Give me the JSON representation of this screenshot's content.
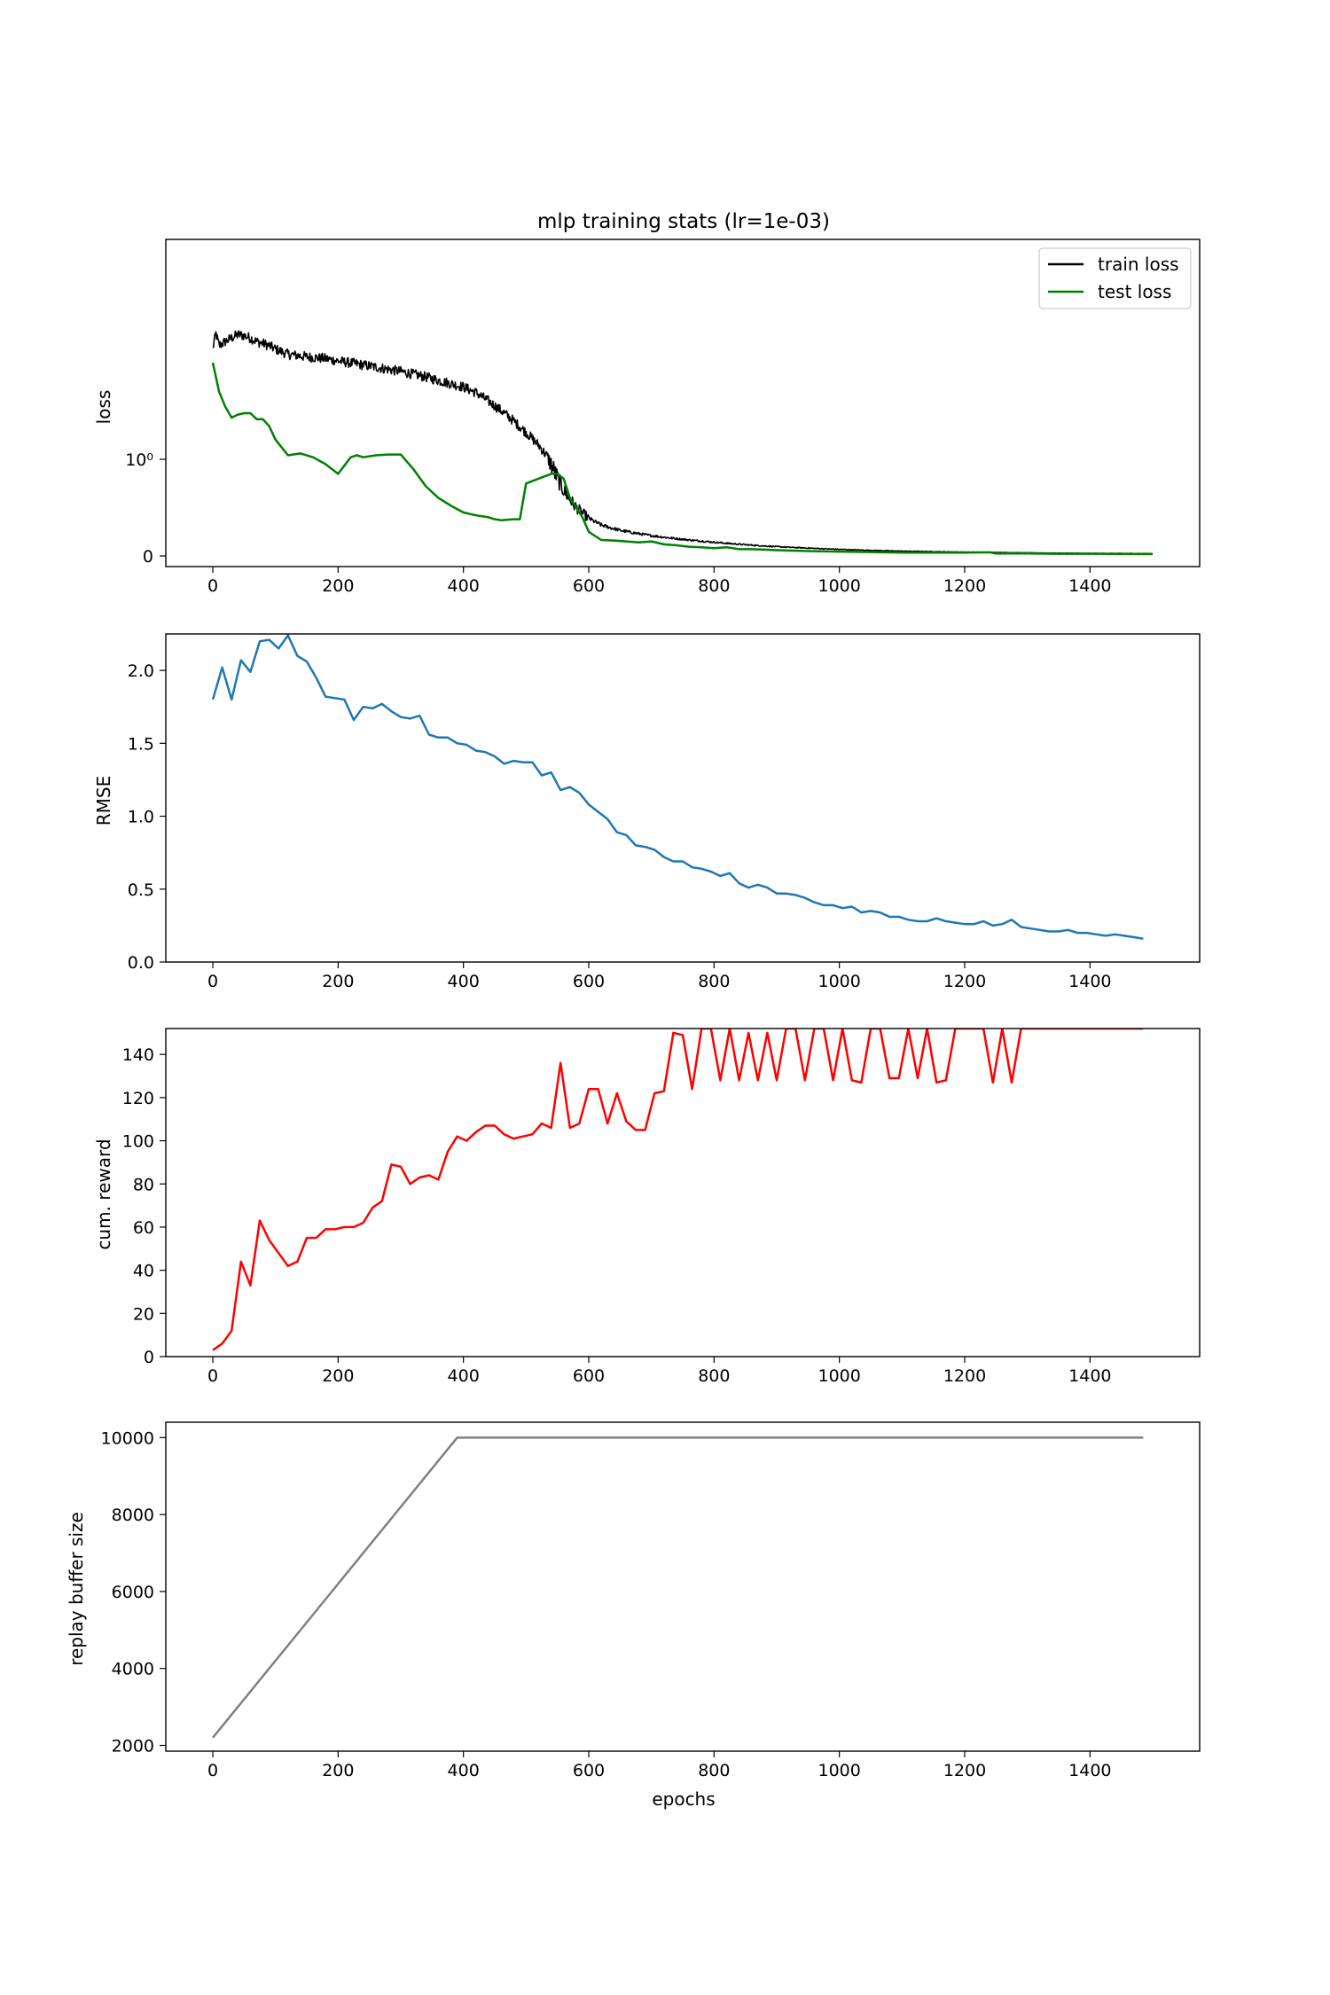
{
  "chart_data": [
    {
      "type": "line",
      "title": "mlp training stats (lr=1e-03)",
      "xlabel": "",
      "ylabel": "loss",
      "xlim": [
        -75,
        1575
      ],
      "x_ticks": [
        "0",
        "200",
        "400",
        "600",
        "800",
        "1000",
        "1200",
        "1400"
      ],
      "y_scale": "symlog",
      "y_ticks": [
        "0",
        "10⁰"
      ],
      "legend": "top-right",
      "grid": false,
      "series": [
        {
          "name": "train loss",
          "color": "#000000",
          "noisy": true,
          "x": [
            0,
            5,
            10,
            20,
            30,
            40,
            50,
            60,
            70,
            80,
            90,
            100,
            120,
            150,
            180,
            200,
            230,
            260,
            300,
            340,
            370,
            400,
            420,
            440,
            460,
            480,
            500,
            520,
            540,
            560,
            580,
            600,
            620,
            650,
            680,
            700,
            750,
            800,
            850,
            900,
            950,
            1000,
            1050,
            1100,
            1150,
            1200,
            1250,
            1300,
            1350,
            1400,
            1450,
            1500
          ],
          "y": [
            14.0,
            20.0,
            15.0,
            16.5,
            18.0,
            19.5,
            19.0,
            18.0,
            16.5,
            15.8,
            15.0,
            13.8,
            12.2,
            11.5,
            11.0,
            10.4,
            9.7,
            9.0,
            8.1,
            7.1,
            6.3,
            5.6,
            4.9,
            4.0,
            3.2,
            2.5,
            1.9,
            1.4,
            0.95,
            0.68,
            0.5,
            0.39,
            0.32,
            0.265,
            0.23,
            0.21,
            0.172,
            0.142,
            0.116,
            0.096,
            0.081,
            0.068,
            0.058,
            0.05,
            0.045,
            0.04,
            0.036,
            0.032,
            0.029,
            0.027,
            0.026,
            0.025
          ]
        },
        {
          "name": "test loss",
          "color": "#008000",
          "noisy": false,
          "x": [
            0,
            10,
            20,
            30,
            40,
            50,
            60,
            70,
            80,
            90,
            100,
            120,
            140,
            160,
            180,
            200,
            220,
            230,
            240,
            260,
            280,
            300,
            320,
            340,
            360,
            380,
            400,
            420,
            440,
            450,
            460,
            480,
            490,
            500,
            520,
            540,
            550,
            560,
            570,
            580,
            590,
            600,
            620,
            640,
            660,
            680,
            700,
            720,
            740,
            760,
            780,
            800,
            820,
            840,
            860,
            880,
            900,
            950,
            1000,
            1050,
            1100,
            1150,
            1200,
            1240,
            1250,
            1300,
            1350,
            1400,
            1450,
            1500
          ],
          "y": [
            10.0,
            5.0,
            3.5,
            2.7,
            2.9,
            3.0,
            3.0,
            2.6,
            2.6,
            2.2,
            1.6,
            1.1,
            1.15,
            1.05,
            0.95,
            0.85,
            1.05,
            1.1,
            1.05,
            1.1,
            1.12,
            1.12,
            0.9,
            0.72,
            0.6,
            0.52,
            0.45,
            0.42,
            0.4,
            0.38,
            0.37,
            0.38,
            0.38,
            0.75,
            0.8,
            0.85,
            0.85,
            0.8,
            0.6,
            0.5,
            0.4,
            0.25,
            0.165,
            0.16,
            0.15,
            0.14,
            0.15,
            0.12,
            0.11,
            0.095,
            0.09,
            0.08,
            0.09,
            0.07,
            0.07,
            0.065,
            0.06,
            0.05,
            0.045,
            0.04,
            0.035,
            0.035,
            0.035,
            0.038,
            0.025,
            0.025,
            0.022,
            0.022,
            0.02,
            0.02
          ]
        }
      ]
    },
    {
      "type": "line",
      "title": "",
      "xlabel": "",
      "ylabel": "RMSE",
      "xlim": [
        -75,
        1575
      ],
      "ylim": [
        0.0,
        2.25
      ],
      "x_ticks": [
        "0",
        "200",
        "400",
        "600",
        "800",
        "1000",
        "1200",
        "1400"
      ],
      "y_ticks": [
        "0.0",
        "0.5",
        "1.0",
        "1.5",
        "2.0"
      ],
      "grid": false,
      "series": [
        {
          "color": "#1f77b4",
          "x": [
            0,
            15,
            30,
            45,
            60,
            75,
            90,
            105,
            120,
            135,
            150,
            165,
            180,
            195,
            210,
            225,
            240,
            255,
            270,
            285,
            300,
            315,
            330,
            345,
            360,
            375,
            390,
            405,
            420,
            435,
            450,
            465,
            480,
            495,
            510,
            525,
            540,
            555,
            570,
            585,
            600,
            615,
            630,
            645,
            660,
            675,
            690,
            705,
            720,
            735,
            750,
            765,
            780,
            795,
            810,
            825,
            840,
            855,
            870,
            885,
            900,
            915,
            930,
            945,
            960,
            975,
            990,
            1005,
            1020,
            1035,
            1050,
            1065,
            1080,
            1095,
            1110,
            1125,
            1140,
            1155,
            1170,
            1185,
            1200,
            1215,
            1230,
            1245,
            1260,
            1275,
            1290,
            1305,
            1320,
            1335,
            1350,
            1365,
            1380,
            1395,
            1410,
            1425,
            1440,
            1455,
            1470,
            1485
          ],
          "y": [
            1.8,
            2.02,
            1.8,
            2.07,
            1.99,
            2.2,
            2.21,
            2.15,
            2.24,
            2.1,
            2.06,
            1.95,
            1.82,
            1.81,
            1.8,
            1.66,
            1.75,
            1.74,
            1.77,
            1.72,
            1.68,
            1.67,
            1.69,
            1.56,
            1.54,
            1.54,
            1.5,
            1.49,
            1.45,
            1.44,
            1.41,
            1.36,
            1.38,
            1.37,
            1.37,
            1.28,
            1.3,
            1.18,
            1.2,
            1.16,
            1.08,
            1.03,
            0.98,
            0.89,
            0.87,
            0.8,
            0.79,
            0.77,
            0.72,
            0.69,
            0.69,
            0.65,
            0.64,
            0.62,
            0.59,
            0.61,
            0.54,
            0.51,
            0.53,
            0.51,
            0.47,
            0.47,
            0.46,
            0.44,
            0.41,
            0.39,
            0.39,
            0.37,
            0.38,
            0.34,
            0.35,
            0.34,
            0.31,
            0.31,
            0.29,
            0.28,
            0.28,
            0.3,
            0.28,
            0.27,
            0.26,
            0.26,
            0.28,
            0.25,
            0.26,
            0.29,
            0.24,
            0.23,
            0.22,
            0.21,
            0.21,
            0.22,
            0.2,
            0.2,
            0.19,
            0.18,
            0.19,
            0.18,
            0.17,
            0.16
          ]
        }
      ]
    },
    {
      "type": "line",
      "title": "",
      "xlabel": "",
      "ylabel": "cum. reward",
      "xlim": [
        -75,
        1575
      ],
      "ylim": [
        0,
        152
      ],
      "x_ticks": [
        "0",
        "200",
        "400",
        "600",
        "800",
        "1000",
        "1200",
        "1400"
      ],
      "y_ticks": [
        "0",
        "20",
        "40",
        "60",
        "80",
        "100",
        "120",
        "140"
      ],
      "grid": false,
      "series": [
        {
          "color": "#ff0000",
          "x": [
            0,
            15,
            30,
            45,
            60,
            75,
            90,
            105,
            120,
            135,
            150,
            165,
            180,
            195,
            210,
            225,
            240,
            255,
            270,
            285,
            300,
            315,
            330,
            345,
            360,
            375,
            390,
            405,
            420,
            435,
            450,
            465,
            480,
            495,
            510,
            525,
            540,
            555,
            570,
            585,
            600,
            615,
            630,
            645,
            660,
            675,
            690,
            705,
            720,
            735,
            750,
            765,
            780,
            795,
            810,
            825,
            840,
            855,
            870,
            885,
            900,
            915,
            930,
            945,
            960,
            975,
            990,
            1005,
            1020,
            1035,
            1050,
            1065,
            1080,
            1095,
            1110,
            1125,
            1140,
            1155,
            1170,
            1185,
            1200,
            1215,
            1230,
            1245,
            1260,
            1275,
            1290,
            1305,
            1320,
            1335,
            1350,
            1365,
            1380,
            1395,
            1410,
            1425,
            1440,
            1455,
            1470,
            1485
          ],
          "y": [
            3,
            6,
            12,
            44,
            33,
            63,
            54,
            48,
            42,
            44,
            55,
            55,
            59,
            59,
            60,
            60,
            62,
            69,
            72,
            89,
            88,
            80,
            83,
            84,
            82,
            95,
            102,
            100,
            104,
            107,
            107,
            103,
            101,
            102,
            103,
            108,
            106,
            136,
            106,
            108,
            124,
            124,
            108,
            122,
            109,
            105,
            105,
            122,
            123,
            150,
            149,
            124,
            152,
            152,
            128,
            152,
            128,
            150,
            128,
            150,
            128,
            152,
            152,
            128,
            152,
            152,
            128,
            152,
            128,
            127,
            152,
            152,
            129,
            129,
            152,
            129,
            152,
            127,
            128,
            152,
            152,
            152,
            152,
            127,
            152,
            127,
            152,
            152,
            152,
            152,
            152,
            152,
            152,
            152,
            152,
            152,
            152,
            152,
            152,
            152
          ]
        }
      ]
    },
    {
      "type": "line",
      "title": "",
      "xlabel": "epochs",
      "ylabel": "replay buffer size",
      "xlim": [
        -75,
        1575
      ],
      "ylim": [
        1850,
        10400
      ],
      "x_ticks": [
        "0",
        "200",
        "400",
        "600",
        "800",
        "1000",
        "1200",
        "1400"
      ],
      "y_ticks": [
        "2000",
        "4000",
        "6000",
        "8000",
        "10000"
      ],
      "grid": false,
      "series": [
        {
          "color": "#808080",
          "x": [
            0,
            390,
            1485
          ],
          "y": [
            2200,
            10000,
            10000
          ]
        }
      ]
    }
  ]
}
